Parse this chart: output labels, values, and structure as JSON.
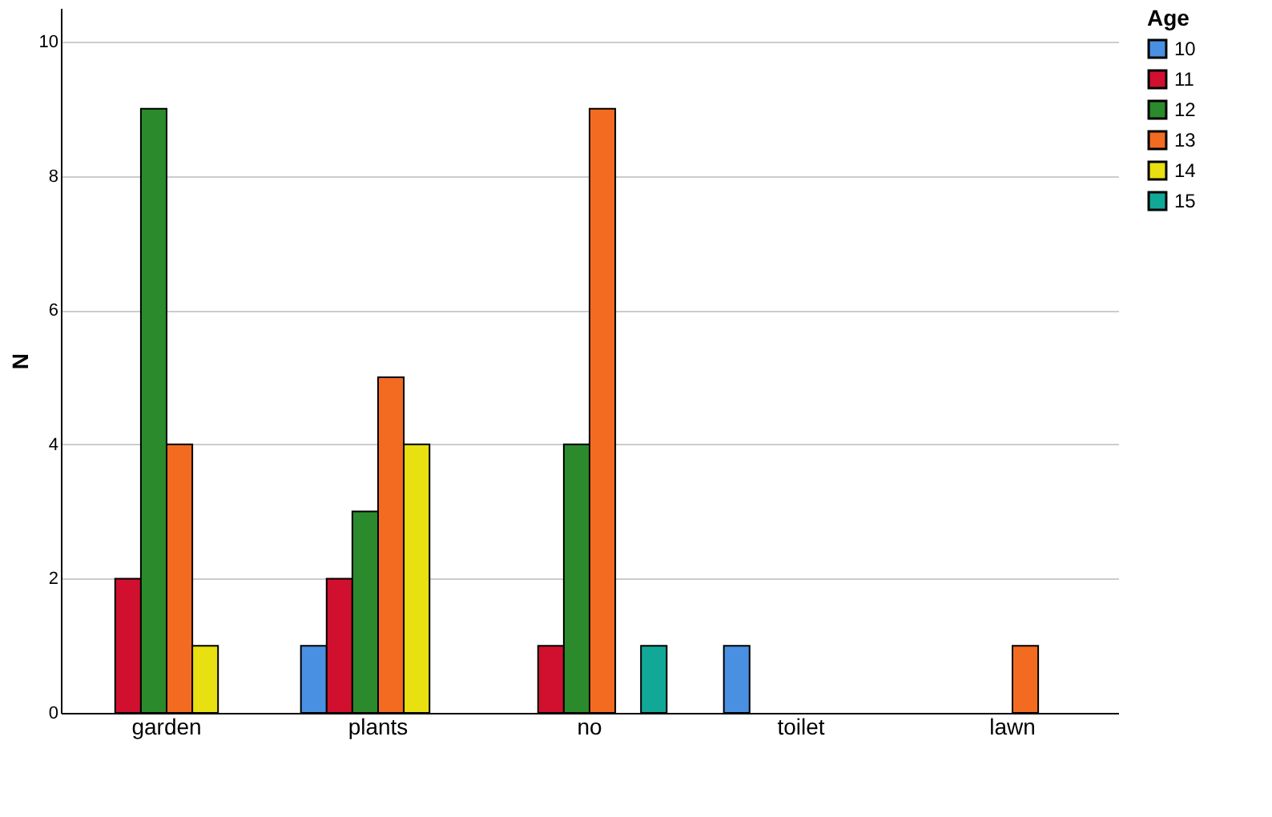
{
  "chart_data": {
    "type": "bar",
    "ylabel": "N",
    "legend_title": "Age",
    "categories": [
      "garden",
      "plants",
      "no",
      "toilet",
      "lawn"
    ],
    "series": [
      {
        "name": "10",
        "color": "#4a90e2",
        "values": [
          null,
          1,
          null,
          1,
          null
        ]
      },
      {
        "name": "11",
        "color": "#d0102e",
        "values": [
          2,
          2,
          1,
          null,
          null
        ]
      },
      {
        "name": "12",
        "color": "#2b8a2b",
        "values": [
          9,
          3,
          4,
          null,
          null
        ]
      },
      {
        "name": "13",
        "color": "#f26b21",
        "values": [
          4,
          5,
          9,
          null,
          1
        ]
      },
      {
        "name": "14",
        "color": "#e8e010",
        "values": [
          1,
          4,
          null,
          null,
          null
        ]
      },
      {
        "name": "15",
        "color": "#12a898",
        "values": [
          null,
          null,
          1,
          null,
          null
        ]
      }
    ],
    "ylim": [
      0,
      10.5
    ],
    "yticks": [
      0,
      2,
      4,
      6,
      8,
      10
    ],
    "grid": "y",
    "legend": "top right"
  }
}
